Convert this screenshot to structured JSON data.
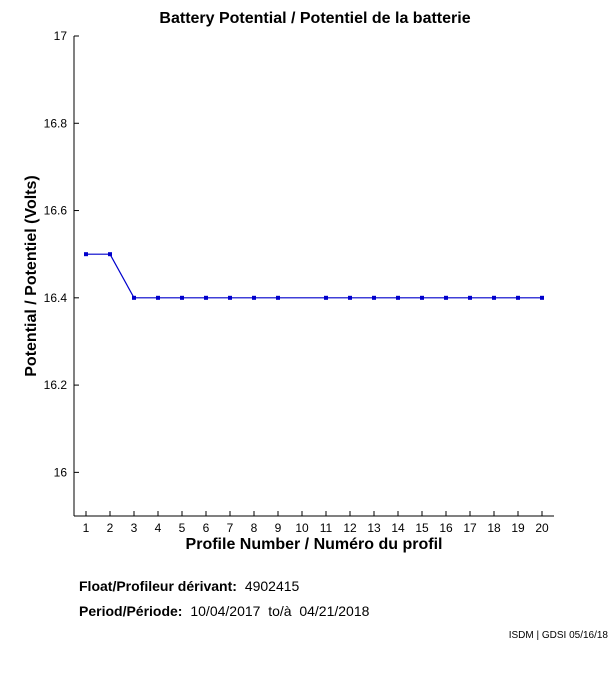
{
  "chart_data": {
    "type": "line",
    "title": "Battery Potential / Potentiel de la batterie",
    "xlabel": "Profile Number / Numéro du profil",
    "ylabel": "Potential / Potentiel (Volts)",
    "ylim": [
      15.9,
      17.0
    ],
    "yticks": [
      "16",
      "16.2",
      "16.4",
      "16.6",
      "16.8",
      "17"
    ],
    "ytick_values": [
      16.0,
      16.2,
      16.4,
      16.6,
      16.8,
      17.0
    ],
    "xlim": [
      0.5,
      20.5
    ],
    "xticks": [
      "1",
      "2",
      "3",
      "4",
      "5",
      "6",
      "7",
      "8",
      "9",
      "10",
      "11",
      "12",
      "13",
      "14",
      "15",
      "16",
      "17",
      "18",
      "19",
      "20"
    ],
    "grid": false,
    "series": [
      {
        "x": [
          1,
          2,
          3,
          4,
          5,
          6,
          7,
          8,
          9,
          11,
          12,
          13,
          14,
          15,
          16,
          17,
          18,
          19,
          20
        ],
        "values": [
          16.5,
          16.5,
          16.4,
          16.4,
          16.4,
          16.4,
          16.4,
          16.4,
          16.4,
          16.4,
          16.4,
          16.4,
          16.4,
          16.4,
          16.4,
          16.4,
          16.4,
          16.4,
          16.4
        ],
        "color": "#0000cc"
      }
    ]
  },
  "info": {
    "float_label": "Float/Profileur dérivant:",
    "float_value": "4902415",
    "period_label": "Period/Période:",
    "period_value": "10/04/2017  to/à  04/21/2018"
  },
  "footer": "ISDM | GDSI 05/16/18"
}
